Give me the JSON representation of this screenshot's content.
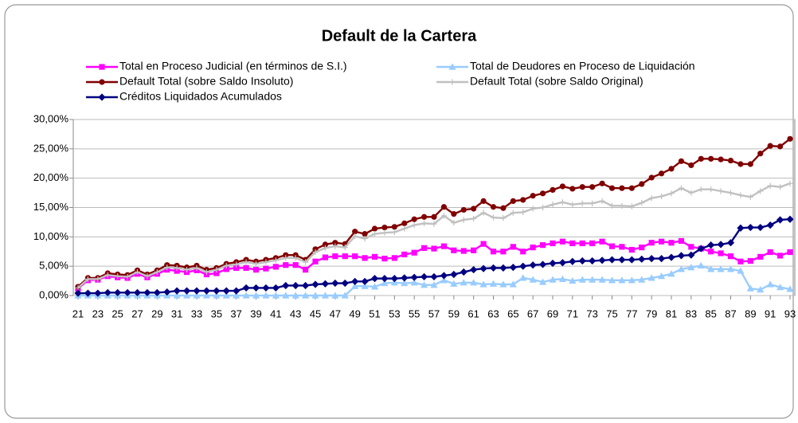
{
  "chart_data": {
    "type": "line",
    "title": "Default de la Cartera",
    "x": [
      21,
      22,
      23,
      24,
      25,
      26,
      27,
      28,
      29,
      30,
      31,
      32,
      33,
      34,
      35,
      36,
      37,
      38,
      39,
      40,
      41,
      42,
      43,
      44,
      45,
      46,
      47,
      48,
      49,
      50,
      51,
      52,
      53,
      54,
      55,
      56,
      57,
      58,
      59,
      60,
      61,
      62,
      63,
      64,
      65,
      66,
      67,
      68,
      69,
      70,
      71,
      72,
      73,
      74,
      75,
      76,
      77,
      78,
      79,
      80,
      81,
      82,
      83,
      84,
      85,
      86,
      87,
      88,
      89,
      90,
      91,
      92,
      93
    ],
    "xlim": [
      21,
      93
    ],
    "xticks": [
      21,
      23,
      25,
      27,
      29,
      31,
      33,
      35,
      37,
      39,
      41,
      43,
      45,
      47,
      49,
      51,
      53,
      55,
      57,
      59,
      61,
      63,
      65,
      67,
      69,
      71,
      73,
      75,
      77,
      79,
      81,
      83,
      85,
      87,
      89,
      91,
      93
    ],
    "ylim": [
      0,
      30
    ],
    "yticks": [
      {
        "value": 0,
        "label": "0,00%"
      },
      {
        "value": 5,
        "label": "5,00%"
      },
      {
        "value": 10,
        "label": "10,00%"
      },
      {
        "value": 15,
        "label": "15,00%"
      },
      {
        "value": 20,
        "label": "20,00%"
      },
      {
        "value": 25,
        "label": "25,00%"
      },
      {
        "value": 30,
        "label": "30,00%"
      }
    ],
    "grid": true,
    "series": [
      {
        "name": "Total en Proceso Judicial (en términos de S.I.)",
        "color": "#ff00ff",
        "marker": "square",
        "values": [
          1.2,
          2.6,
          2.7,
          3.3,
          3.1,
          3.0,
          3.7,
          3.1,
          3.7,
          4.4,
          4.2,
          4.0,
          4.3,
          3.6,
          3.8,
          4.5,
          4.7,
          4.7,
          4.4,
          4.6,
          4.9,
          5.2,
          5.2,
          4.4,
          5.8,
          6.5,
          6.7,
          6.7,
          6.7,
          6.4,
          6.6,
          6.3,
          6.4,
          7.0,
          7.3,
          8.1,
          8.0,
          8.4,
          7.7,
          7.6,
          7.7,
          8.8,
          7.5,
          7.5,
          8.3,
          7.5,
          8.2,
          8.6,
          8.9,
          9.2,
          8.9,
          8.9,
          8.9,
          9.2,
          8.4,
          8.3,
          7.8,
          8.2,
          9.0,
          9.2,
          9.0,
          9.3,
          8.3,
          8.0,
          7.5,
          7.2,
          6.7,
          5.8,
          5.9,
          6.6,
          7.4,
          6.8,
          7.4
        ]
      },
      {
        "name": "Total de Deudores en Proceso de Liquidación",
        "color": "#99ccff",
        "marker": "triangle",
        "values": [
          0,
          0,
          0,
          0,
          0,
          0,
          0,
          0,
          0,
          0,
          0,
          0,
          0,
          0,
          0,
          0,
          0,
          0,
          0,
          0,
          0,
          0,
          0,
          0,
          0,
          0,
          0,
          0,
          1.6,
          1.6,
          1.5,
          2.1,
          2.2,
          2.1,
          2.2,
          1.8,
          1.8,
          2.6,
          2.0,
          2.2,
          2.2,
          1.9,
          2.0,
          1.9,
          1.9,
          3.0,
          2.7,
          2.3,
          2.7,
          2.8,
          2.5,
          2.7,
          2.7,
          2.7,
          2.6,
          2.6,
          2.6,
          2.7,
          3.0,
          3.3,
          3.7,
          4.5,
          4.8,
          5.1,
          4.5,
          4.5,
          4.5,
          4.2,
          1.2,
          1.0,
          1.9,
          1.4,
          1.1
        ]
      },
      {
        "name": "Default Total (sobre Saldo Insoluto)",
        "color": "#800000",
        "marker": "circle",
        "values": [
          1.5,
          3.0,
          3.0,
          3.8,
          3.6,
          3.5,
          4.3,
          3.6,
          4.3,
          5.2,
          5.1,
          4.8,
          5.1,
          4.4,
          4.7,
          5.4,
          5.7,
          6.1,
          5.8,
          6.1,
          6.4,
          6.9,
          6.9,
          6.1,
          7.9,
          8.7,
          9.0,
          8.8,
          10.9,
          10.5,
          11.4,
          11.6,
          11.7,
          12.3,
          13.0,
          13.4,
          13.4,
          15.1,
          13.9,
          14.6,
          14.8,
          16.1,
          15.1,
          14.9,
          16.1,
          16.3,
          17.0,
          17.4,
          18.0,
          18.6,
          18.2,
          18.5,
          18.5,
          19.1,
          18.3,
          18.3,
          18.3,
          19.0,
          20.1,
          20.8,
          21.6,
          22.9,
          22.2,
          23.3,
          23.3,
          23.2,
          23.0,
          22.4,
          22.4,
          24.2,
          25.5,
          25.4,
          26.7
        ]
      },
      {
        "name": "Default Total (sobre Saldo Original)",
        "color": "#c0c0c0",
        "marker": "plus",
        "values": [
          1.3,
          2.8,
          2.8,
          3.5,
          3.3,
          3.2,
          4.0,
          3.3,
          4.0,
          4.8,
          4.7,
          4.4,
          4.7,
          4.0,
          4.4,
          5.1,
          5.3,
          5.7,
          5.4,
          5.7,
          6.0,
          6.4,
          6.4,
          5.7,
          7.4,
          8.1,
          8.4,
          8.2,
          10.1,
          9.7,
          10.5,
          10.7,
          10.8,
          11.4,
          12.0,
          12.3,
          12.2,
          13.6,
          12.4,
          12.9,
          13.1,
          14.1,
          13.3,
          13.2,
          14.1,
          14.2,
          14.8,
          15.0,
          15.5,
          15.9,
          15.5,
          15.7,
          15.7,
          16.1,
          15.3,
          15.3,
          15.2,
          15.8,
          16.6,
          16.9,
          17.4,
          18.3,
          17.5,
          18.1,
          18.1,
          17.8,
          17.5,
          17.1,
          16.8,
          17.8,
          18.7,
          18.5,
          19.1
        ]
      },
      {
        "name": "Créditos Liquidados Acumulados",
        "color": "#000080",
        "marker": "diamond",
        "values": [
          0.4,
          0.4,
          0.4,
          0.5,
          0.5,
          0.5,
          0.5,
          0.5,
          0.5,
          0.6,
          0.8,
          0.8,
          0.8,
          0.8,
          0.8,
          0.8,
          0.8,
          1.3,
          1.3,
          1.3,
          1.3,
          1.7,
          1.7,
          1.7,
          1.9,
          2.0,
          2.1,
          2.1,
          2.4,
          2.4,
          2.9,
          2.9,
          2.9,
          3.0,
          3.1,
          3.2,
          3.2,
          3.4,
          3.6,
          4.0,
          4.4,
          4.6,
          4.7,
          4.7,
          4.8,
          5.0,
          5.2,
          5.3,
          5.5,
          5.6,
          5.8,
          5.9,
          5.9,
          6.0,
          6.1,
          6.1,
          6.1,
          6.2,
          6.3,
          6.3,
          6.5,
          6.8,
          6.9,
          8.0,
          8.6,
          8.7,
          9.0,
          11.5,
          11.6,
          11.6,
          12.0,
          12.9,
          13.0
        ]
      }
    ]
  }
}
